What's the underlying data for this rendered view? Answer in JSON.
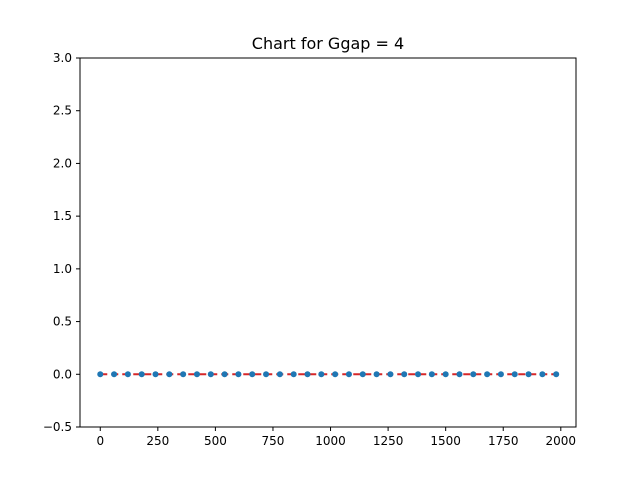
{
  "chart_data": {
    "type": "line",
    "title": "Chart for Ggap = 4",
    "xlabel": "",
    "ylabel": "",
    "xlim": [
      -88,
      2066
    ],
    "ylim": [
      -0.5,
      3.0
    ],
    "xticks": [
      0,
      250,
      500,
      750,
      1000,
      1250,
      1500,
      1750,
      2000
    ],
    "xtick_labels": [
      "0",
      "250",
      "500",
      "750",
      "1000",
      "1250",
      "1500",
      "1750",
      "2000"
    ],
    "yticks": [
      -0.5,
      0.0,
      0.5,
      1.0,
      1.5,
      2.0,
      2.5,
      3.0
    ],
    "ytick_labels": [
      "−0.5",
      "0.0",
      "0.5",
      "1.0",
      "1.5",
      "2.0",
      "2.5",
      "3.0"
    ],
    "grid": false,
    "series": [
      {
        "style": "dashed-line-with-markers",
        "line_color": "#d62728",
        "marker_color": "#1f77b4",
        "x": [
          0,
          60,
          120,
          180,
          240,
          300,
          360,
          420,
          480,
          540,
          600,
          660,
          720,
          780,
          840,
          900,
          960,
          1020,
          1080,
          1140,
          1200,
          1260,
          1320,
          1380,
          1440,
          1500,
          1560,
          1620,
          1680,
          1740,
          1800,
          1860,
          1920,
          1980
        ],
        "y": [
          0,
          0,
          0,
          0,
          0,
          0,
          0,
          0,
          0,
          0,
          0,
          0,
          0,
          0,
          0,
          0,
          0,
          0,
          0,
          0,
          0,
          0,
          0,
          0,
          0,
          0,
          0,
          0,
          0,
          0,
          0,
          0,
          0,
          0
        ]
      }
    ]
  }
}
